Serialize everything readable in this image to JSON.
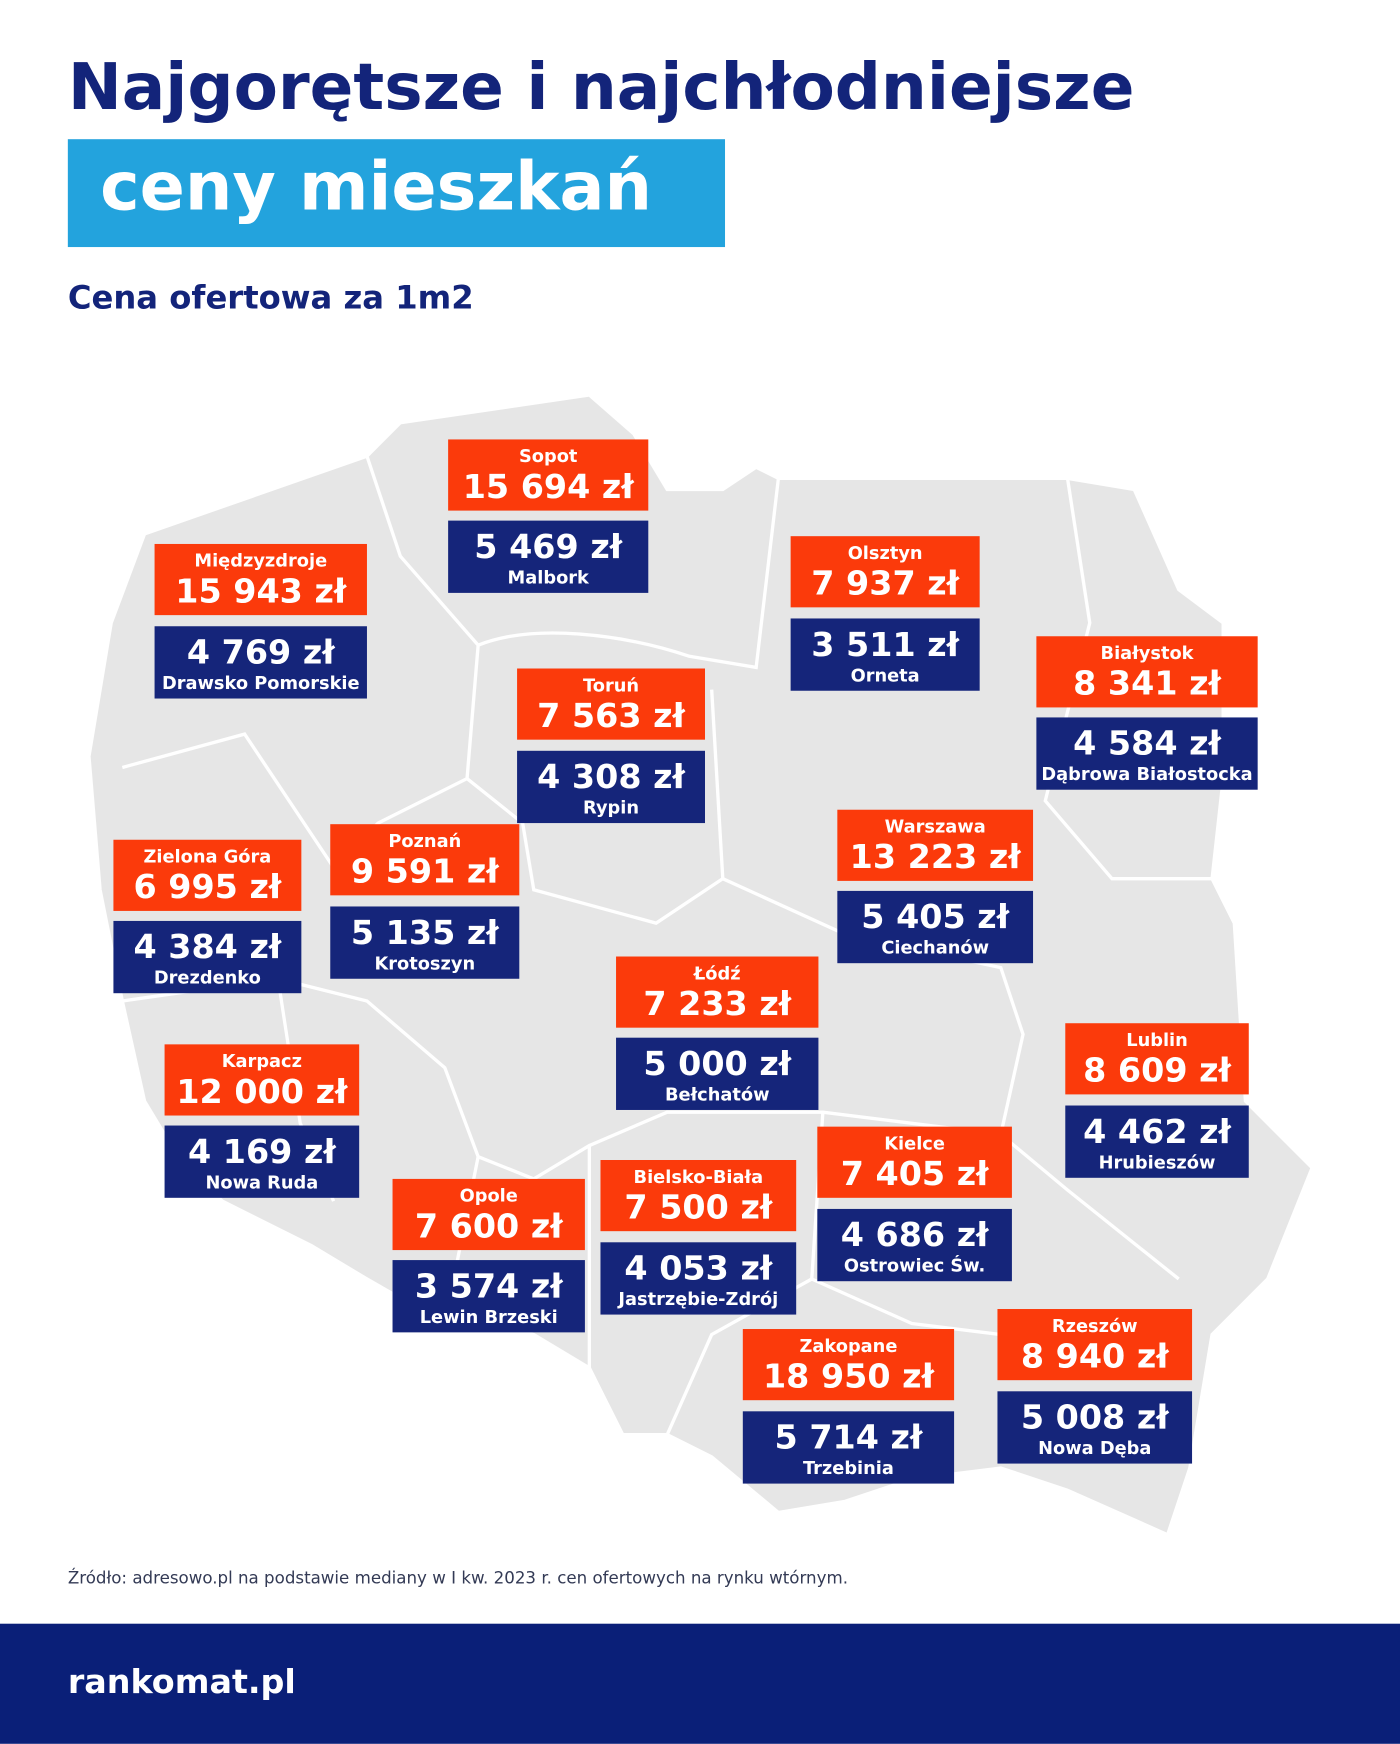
{
  "header": {
    "title": "Najgorętsze i najchłodniejsze",
    "highlight": "ceny mieszkań",
    "subtitle": "Cena ofertowa za 1m2"
  },
  "regions": [
    {
      "hot_city": "Sopot",
      "hot_price": "15 694 zł",
      "cold_price": "5 469 zł",
      "cold_city": "Malbork"
    },
    {
      "hot_city": "Międzyzdroje",
      "hot_price": "15 943 zł",
      "cold_price": "4 769 zł",
      "cold_city": "Drawsko Pomorskie"
    },
    {
      "hot_city": "Olsztyn",
      "hot_price": "7 937 zł",
      "cold_price": "3 511 zł",
      "cold_city": "Orneta"
    },
    {
      "hot_city": "Białystok",
      "hot_price": "8 341 zł",
      "cold_price": "4 584 zł",
      "cold_city": "Dąbrowa Białostocka"
    },
    {
      "hot_city": "Toruń",
      "hot_price": "7 563 zł",
      "cold_price": "4 308 zł",
      "cold_city": "Rypin"
    },
    {
      "hot_city": "Warszawa",
      "hot_price": "13 223 zł",
      "cold_price": "5 405 zł",
      "cold_city": "Ciechanów"
    },
    {
      "hot_city": "Zielona Góra",
      "hot_price": "6 995 zł",
      "cold_price": "4 384 zł",
      "cold_city": "Drezdenko"
    },
    {
      "hot_city": "Poznań",
      "hot_price": "9 591 zł",
      "cold_price": "5 135 zł",
      "cold_city": "Krotoszyn"
    },
    {
      "hot_city": "Łódź",
      "hot_price": "7 233 zł",
      "cold_price": "5 000 zł",
      "cold_city": "Bełchatów"
    },
    {
      "hot_city": "Lublin",
      "hot_price": "8 609 zł",
      "cold_price": "4 462 zł",
      "cold_city": "Hrubieszów"
    },
    {
      "hot_city": "Karpacz",
      "hot_price": "12 000 zł",
      "cold_price": "4 169 zł",
      "cold_city": "Nowa Ruda"
    },
    {
      "hot_city": "Opole",
      "hot_price": "7 600 zł",
      "cold_price": "3 574 zł",
      "cold_city": "Lewin Brzeski"
    },
    {
      "hot_city": "Bielsko-Biała",
      "hot_price": "7 500 zł",
      "cold_price": "4 053 zł",
      "cold_city": "Jastrzębie-Zdrój"
    },
    {
      "hot_city": "Kielce",
      "hot_price": "7 405 zł",
      "cold_price": "4 686 zł",
      "cold_city": "Ostrowiec Św."
    },
    {
      "hot_city": "Zakopane",
      "hot_price": "18 950 zł",
      "cold_price": "5 714 zł",
      "cold_city": "Trzebinia"
    },
    {
      "hot_city": "Rzeszów",
      "hot_price": "8 940 zł",
      "cold_price": "5 008 zł",
      "cold_city": "Nowa Dęba"
    }
  ],
  "source": "Źródło: adresowo.pl na podstawie mediany w I kw. 2023 r. cen ofertowych na rynku wtórnym.",
  "logo": "rankomat.pl"
}
